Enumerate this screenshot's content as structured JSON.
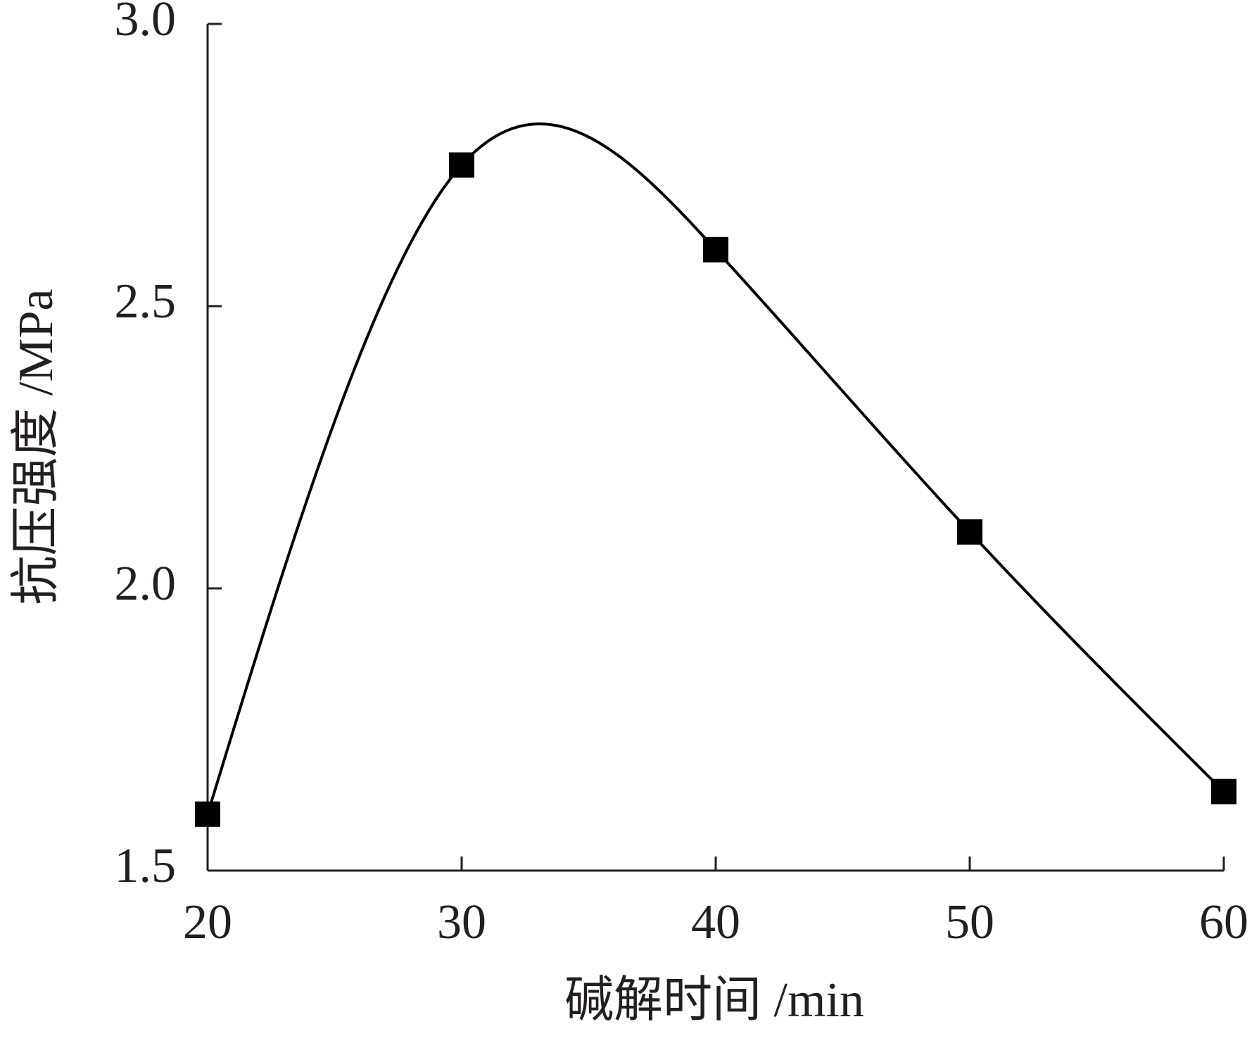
{
  "chart_data": {
    "type": "line",
    "x_label": "碱解时间 /min",
    "y_label": "抗压强度 /MPa",
    "x": [
      20,
      30,
      40,
      50,
      60
    ],
    "values": [
      1.6,
      2.75,
      2.6,
      2.1,
      1.64
    ],
    "color": "#000000",
    "smooth": true,
    "xlim": [
      20,
      60
    ],
    "xticks": [
      20,
      30,
      40,
      50,
      60
    ],
    "ylim": [
      1.5,
      3.0
    ],
    "yticks": [
      {
        "value": 1.5,
        "label": "1.5"
      },
      {
        "value": 2.0,
        "label": "2.0"
      },
      {
        "value": 2.5,
        "label": "2.5"
      },
      {
        "value": 3.0,
        "label": "3.0"
      }
    ]
  }
}
